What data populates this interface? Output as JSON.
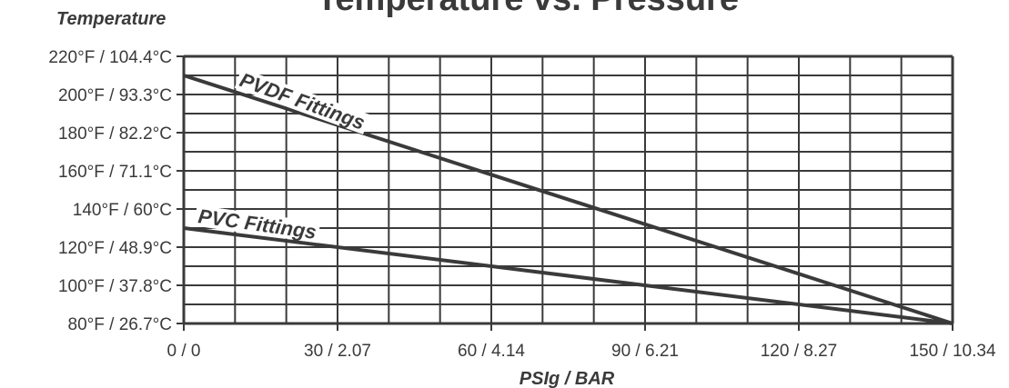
{
  "chart_data": {
    "type": "line",
    "title": "Temperature vs. Pressure",
    "ylabel": "Temperature",
    "xlabel": "PSIg / BAR",
    "x_ticks": [
      {
        "value": 0,
        "label": "0 / 0"
      },
      {
        "value": 30,
        "label": "30 / 2.07"
      },
      {
        "value": 60,
        "label": "60 / 4.14"
      },
      {
        "value": 90,
        "label": "90 / 6.21"
      },
      {
        "value": 120,
        "label": "120 / 8.27"
      },
      {
        "value": 150,
        "label": "150 / 10.34"
      }
    ],
    "y_ticks": [
      {
        "value": 80,
        "label": "80°F / 26.7°C"
      },
      {
        "value": 100,
        "label": "100°F / 37.8°C"
      },
      {
        "value": 120,
        "label": "120°F / 48.9°C"
      },
      {
        "value": 140,
        "label": "140°F / 60°C"
      },
      {
        "value": 160,
        "label": "160°F / 71.1°C"
      },
      {
        "value": 180,
        "label": "180°F / 82.2°C"
      },
      {
        "value": 200,
        "label": "200°F / 93.3°C"
      },
      {
        "value": 220,
        "label": "220°F / 104.4°C"
      }
    ],
    "xlim": [
      0,
      150
    ],
    "ylim": [
      80,
      220
    ],
    "grid": true,
    "series": [
      {
        "name": "PVDF Fittings",
        "x": [
          0,
          150
        ],
        "y": [
          210,
          80
        ]
      },
      {
        "name": "PVC Fittings",
        "x": [
          0,
          150
        ],
        "y": [
          130,
          80
        ]
      }
    ]
  },
  "colors": {
    "line": "#3a3a3a",
    "grid": "#3a3a3a",
    "text": "#3a3a3a"
  }
}
